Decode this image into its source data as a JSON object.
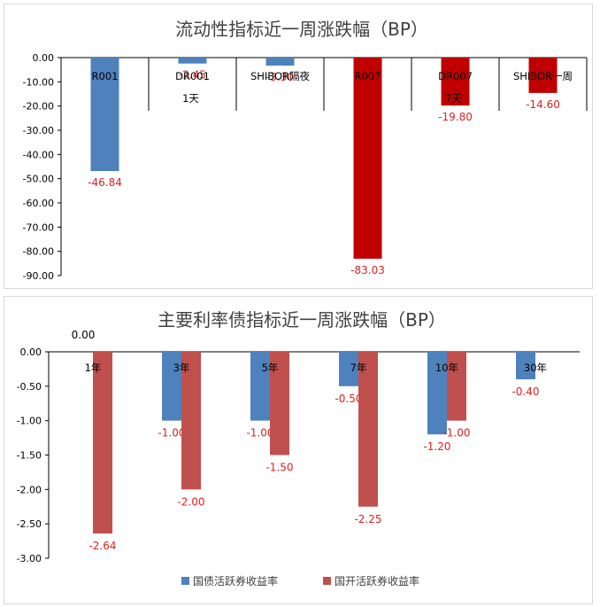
{
  "charts": [
    {
      "type": "bar",
      "title": "流动性指标近一周涨跌幅（BP）",
      "ylim": [
        -90,
        0
      ],
      "yticks": [
        "0.00",
        "-10.00",
        "-20.00",
        "-30.00",
        "-40.00",
        "-50.00",
        "-60.00",
        "-70.00",
        "-80.00",
        "-90.00"
      ],
      "categories": [
        [
          "R001"
        ],
        [
          "DR001",
          "1天"
        ],
        [
          "SHIBOR隔夜"
        ],
        [
          "R007"
        ],
        [
          "DR007",
          "7天"
        ],
        [
          "SHIBOR一周"
        ]
      ],
      "values": [
        -46.84,
        -2.45,
        -3.3,
        -83.03,
        -19.8,
        -14.6
      ],
      "value_labels": [
        "-46.84",
        "-2.45",
        "-3.30",
        "-83.03",
        "-19.80",
        "-14.60"
      ],
      "bar_colors": [
        "#4f81bd",
        "#4f81bd",
        "#4f81bd",
        "#c00000",
        "#c00000",
        "#c00000"
      ],
      "value_label_color": "#e02020"
    },
    {
      "type": "bar",
      "title": "主要利率债指标近一周涨跌幅（BP）",
      "ylim": [
        -3,
        0
      ],
      "yticks": [
        "0.00",
        "-0.50",
        "-1.00",
        "-1.50",
        "-2.00",
        "-2.50",
        "-3.00"
      ],
      "categories": [
        [
          "1年"
        ],
        [
          "3年"
        ],
        [
          "5年"
        ],
        [
          "7年"
        ],
        [
          "10年"
        ],
        [
          "30年"
        ]
      ],
      "series": [
        {
          "name": "国债活跃券收益率",
          "color": "#4f81bd",
          "values": [
            0,
            -1.0,
            -1.0,
            -0.5,
            -1.2,
            -0.4
          ],
          "value_labels": [
            "0.00",
            "-1.00",
            "-1.00",
            "-0.50",
            "-1.20",
            "-0.40"
          ]
        },
        {
          "name": "国开活跃券收益率",
          "color": "#c0504d",
          "values": [
            -2.64,
            -2.0,
            -1.5,
            -2.25,
            -1.0,
            null
          ],
          "value_labels": [
            "-2.64",
            "-2.00",
            "-1.50",
            "-2.25",
            "-1.00",
            null
          ]
        }
      ],
      "legend": "bottom",
      "value_label_color": "#e02020"
    }
  ]
}
